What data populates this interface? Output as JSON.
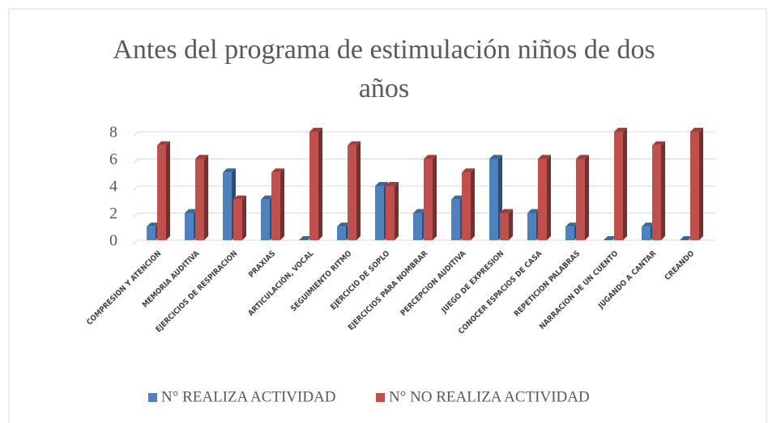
{
  "chart_data": {
    "type": "bar3d",
    "title": "Antes del programa de estimulación niños de dos años",
    "categories": [
      "COMPRESION Y  ATENCION",
      "MEMORIA AUDITIVA",
      "EJERCICIOS DE RESPIRACION",
      "PRAXIAS",
      "ARTICULACIÓN, VOCAL",
      "SEGUIMIENTO RITMO",
      "EJERCICIO DE SOPLO",
      "EJERCICIOS PARA NOMBRAR",
      "PERCEPCION AUDITIVA",
      "JUEGO DE EXPRESION",
      "CONOCER ESPACIOS DE CASA",
      "REPETICION PALABRAS",
      "NARRACION DE UN CUENTO",
      "JUGANDO A CANTAR",
      "CREANDO"
    ],
    "series": [
      {
        "name": "N° REALIZA ACTIVIDAD",
        "color": "#4f81bd",
        "values": [
          1,
          2,
          5,
          3,
          0,
          1,
          4,
          2,
          3,
          6,
          2,
          1,
          0,
          1,
          0
        ]
      },
      {
        "name": "N° NO REALIZA ACTIVIDAD",
        "color": "#c0504d",
        "values": [
          7,
          6,
          3,
          5,
          8,
          7,
          4,
          6,
          5,
          2,
          6,
          6,
          8,
          7,
          8
        ]
      }
    ],
    "ylim": [
      0,
      8
    ],
    "yticks": [
      0,
      2,
      4,
      6,
      8
    ],
    "grid": true,
    "legend": "bottom"
  }
}
